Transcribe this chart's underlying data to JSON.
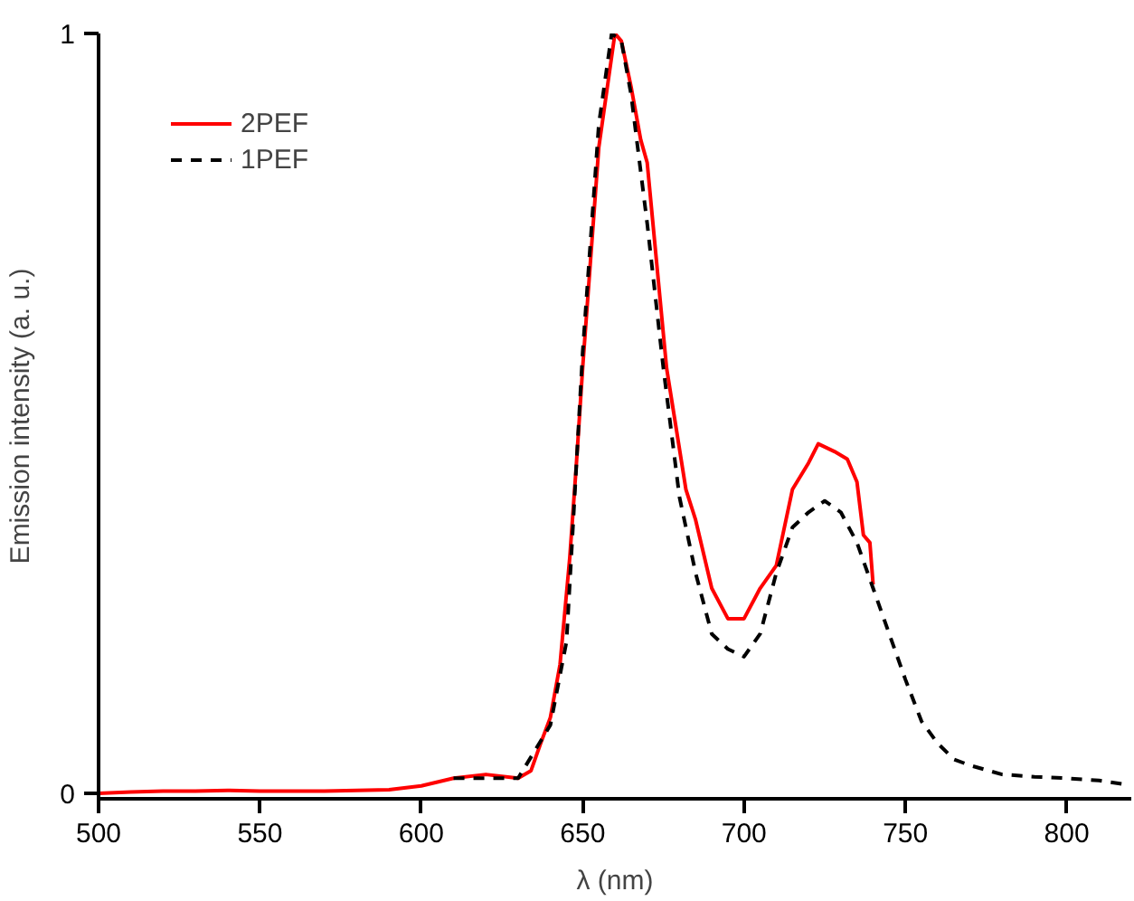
{
  "chart_data": {
    "type": "line",
    "xlabel": "λ (nm)",
    "ylabel": "Emission intensity (a. u.)",
    "xlim": [
      500,
      820
    ],
    "ylim": [
      -0.007,
      1
    ],
    "xticks": [
      500,
      550,
      600,
      650,
      700,
      750,
      800
    ],
    "yticks": [
      0,
      1
    ],
    "grid": false,
    "legend": "top left",
    "series": [
      {
        "name": "2PEF",
        "color": "#ff0000",
        "line_style": "solid",
        "x": [
          500,
          510,
          520,
          530,
          540,
          550,
          560,
          570,
          580,
          590,
          600,
          610,
          620,
          630,
          634,
          637,
          640,
          643,
          646,
          648,
          650,
          655,
          660,
          662,
          665,
          668,
          670,
          676,
          679,
          682,
          685,
          690,
          695,
          700,
          705,
          710,
          715,
          720,
          723,
          728,
          732,
          735,
          737,
          739,
          740
        ],
        "values": [
          0.0,
          0.002,
          0.003,
          0.003,
          0.004,
          0.003,
          0.003,
          0.003,
          0.004,
          0.005,
          0.01,
          0.02,
          0.025,
          0.02,
          0.03,
          0.066,
          0.1,
          0.17,
          0.31,
          0.43,
          0.56,
          0.85,
          1.0,
          0.99,
          0.93,
          0.86,
          0.83,
          0.56,
          0.48,
          0.4,
          0.36,
          0.27,
          0.23,
          0.23,
          0.27,
          0.3,
          0.4,
          0.435,
          0.46,
          0.45,
          0.44,
          0.41,
          0.34,
          0.33,
          0.275
        ]
      },
      {
        "name": "1PEF",
        "color": "#000000",
        "line_style": "dashed",
        "x": [
          610,
          620,
          630,
          640,
          645,
          650,
          655,
          659,
          662,
          665,
          670,
          675,
          680,
          685,
          690,
          695,
          700,
          705,
          710,
          715,
          720,
          725,
          730,
          735,
          740,
          745,
          750,
          755,
          760,
          765,
          770,
          780,
          790,
          800,
          810,
          818
        ],
        "values": [
          0.02,
          0.02,
          0.02,
          0.09,
          0.2,
          0.58,
          0.88,
          1.0,
          0.99,
          0.92,
          0.75,
          0.56,
          0.39,
          0.29,
          0.21,
          0.19,
          0.18,
          0.21,
          0.29,
          0.35,
          0.37,
          0.385,
          0.37,
          0.33,
          0.27,
          0.21,
          0.15,
          0.095,
          0.066,
          0.045,
          0.037,
          0.025,
          0.022,
          0.02,
          0.017,
          0.012
        ]
      }
    ]
  }
}
